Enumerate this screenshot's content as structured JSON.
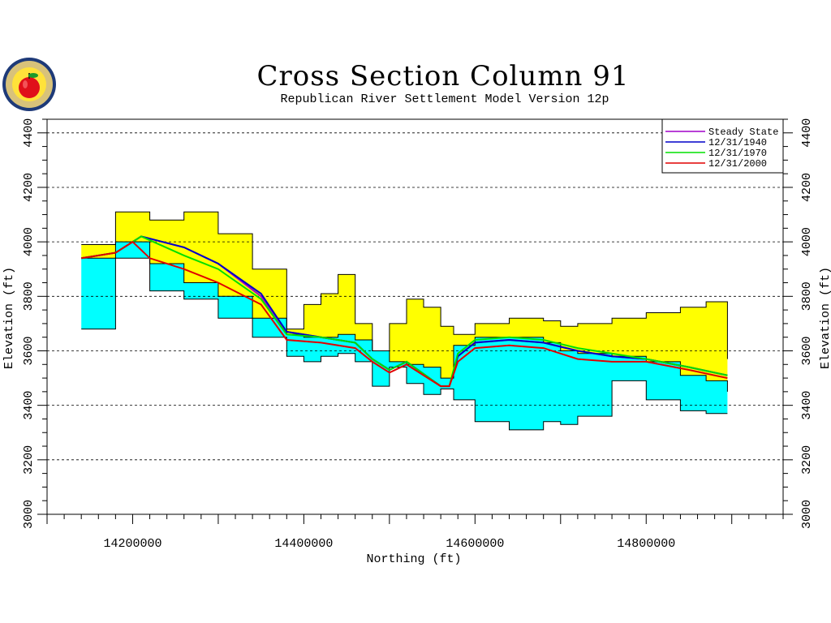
{
  "chart_data": {
    "type": "area",
    "title": "Cross Section Column 91",
    "subtitle": "Republican River Settlement Model Version 12p",
    "xlabel": "Northing (ft)",
    "ylabel": "Elevation (ft)",
    "xlim": [
      14100000,
      14960000
    ],
    "ylim": [
      3000,
      4450
    ],
    "x_ticks": [
      14200000,
      14400000,
      14600000,
      14800000
    ],
    "x_tick_labels": [
      "14200000",
      "14400000",
      "14600000",
      "14800000"
    ],
    "y_ticks": [
      3000,
      3200,
      3400,
      3600,
      3800,
      4000,
      4200,
      4400
    ],
    "y_tick_labels": [
      "3000",
      "3200",
      "3400",
      "3600",
      "3800",
      "4000",
      "4200",
      "4400"
    ],
    "grid": "horizontal dashed",
    "legend_position": "top-right",
    "colors": {
      "upper_layer_fill": "#ffff00",
      "lower_layer_fill": "#00ffff",
      "steady_state": "#a000c8",
      "y1940": "#0000c8",
      "y1970": "#00e000",
      "y2000": "#e00000"
    },
    "layers": {
      "x": [
        14140000,
        14180000,
        14220000,
        14260000,
        14300000,
        14340000,
        14380000,
        14400000,
        14420000,
        14440000,
        14460000,
        14480000,
        14500000,
        14520000,
        14540000,
        14560000,
        14575000,
        14600000,
        14640000,
        14680000,
        14700000,
        14720000,
        14760000,
        14800000,
        14840000,
        14870000,
        14895000
      ],
      "land_surface": [
        3990,
        4110,
        4080,
        4110,
        4030,
        3900,
        3680,
        3770,
        3810,
        3880,
        3700,
        3600,
        3700,
        3790,
        3760,
        3690,
        3660,
        3700,
        3720,
        3710,
        3690,
        3700,
        3720,
        3740,
        3760,
        3780,
        3570
      ],
      "layer_boundary": [
        3940,
        4000,
        3920,
        3850,
        3800,
        3720,
        3660,
        3650,
        3650,
        3660,
        3640,
        3600,
        3560,
        3550,
        3540,
        3500,
        3620,
        3650,
        3650,
        3630,
        3600,
        3590,
        3580,
        3560,
        3510,
        3490,
        3450
      ],
      "aquifer_base": [
        3680,
        3940,
        3820,
        3790,
        3720,
        3650,
        3580,
        3560,
        3580,
        3590,
        3560,
        3470,
        3540,
        3480,
        3440,
        3460,
        3420,
        3340,
        3310,
        3340,
        3330,
        3360,
        3490,
        3420,
        3380,
        3370,
        3370
      ]
    },
    "series": [
      {
        "name": "Steady State",
        "x": [
          14140000,
          14180000,
          14210000,
          14260000,
          14300000,
          14350000,
          14380000,
          14420000,
          14460000,
          14480000,
          14500000,
          14520000,
          14560000,
          14570000,
          14580000,
          14600000,
          14640000,
          14680000,
          14720000,
          14760000,
          14800000,
          14850000,
          14895000
        ],
        "values": [
          3940,
          3960,
          4020,
          3980,
          3920,
          3800,
          3670,
          3650,
          3630,
          3570,
          3530,
          3560,
          3470,
          3470,
          3580,
          3630,
          3640,
          3630,
          3600,
          3580,
          3570,
          3540,
          3510
        ]
      },
      {
        "name": "12/31/1940",
        "x": [
          14140000,
          14180000,
          14210000,
          14260000,
          14300000,
          14350000,
          14380000,
          14420000,
          14460000,
          14480000,
          14500000,
          14520000,
          14560000,
          14570000,
          14580000,
          14600000,
          14640000,
          14680000,
          14720000,
          14760000,
          14800000,
          14850000,
          14895000
        ],
        "values": [
          3940,
          3960,
          4020,
          3980,
          3920,
          3810,
          3670,
          3650,
          3630,
          3570,
          3530,
          3560,
          3470,
          3470,
          3580,
          3630,
          3640,
          3630,
          3600,
          3580,
          3570,
          3540,
          3510
        ]
      },
      {
        "name": "12/31/1970",
        "x": [
          14140000,
          14180000,
          14210000,
          14260000,
          14300000,
          14350000,
          14380000,
          14420000,
          14460000,
          14480000,
          14500000,
          14520000,
          14560000,
          14570000,
          14580000,
          14600000,
          14640000,
          14680000,
          14720000,
          14760000,
          14800000,
          14850000,
          14895000
        ],
        "values": [
          3940,
          3960,
          4020,
          3950,
          3900,
          3790,
          3660,
          3650,
          3630,
          3570,
          3530,
          3560,
          3470,
          3470,
          3590,
          3640,
          3650,
          3640,
          3610,
          3590,
          3570,
          3540,
          3510
        ]
      },
      {
        "name": "12/31/2000",
        "x": [
          14140000,
          14180000,
          14200000,
          14220000,
          14260000,
          14300000,
          14350000,
          14380000,
          14420000,
          14460000,
          14480000,
          14500000,
          14520000,
          14560000,
          14570000,
          14580000,
          14600000,
          14640000,
          14680000,
          14720000,
          14760000,
          14800000,
          14850000,
          14895000
        ],
        "values": [
          3940,
          3960,
          4000,
          3940,
          3900,
          3850,
          3770,
          3640,
          3630,
          3610,
          3560,
          3520,
          3550,
          3470,
          3470,
          3560,
          3610,
          3620,
          3610,
          3570,
          3560,
          3560,
          3530,
          3500
        ]
      }
    ]
  }
}
